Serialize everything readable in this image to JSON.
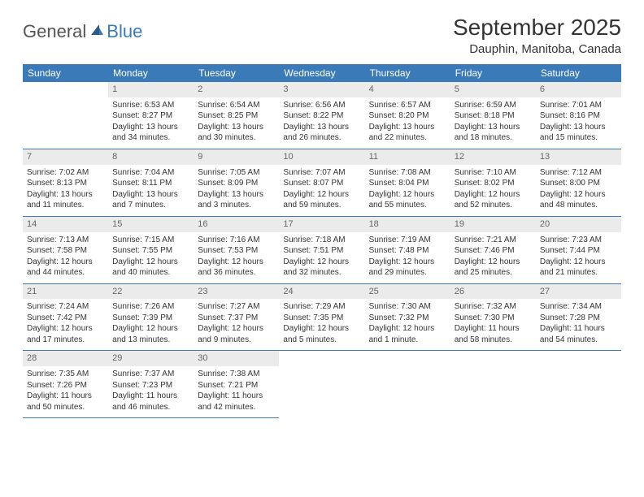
{
  "logo": {
    "text1": "General",
    "text2": "Blue"
  },
  "title": "September 2025",
  "location": "Dauphin, Manitoba, Canada",
  "weekdays": [
    "Sunday",
    "Monday",
    "Tuesday",
    "Wednesday",
    "Thursday",
    "Friday",
    "Saturday"
  ],
  "colors": {
    "header_bg": "#3a7ab8",
    "header_text": "#ffffff",
    "daynum_bg": "#ebebeb",
    "daynum_text": "#666666",
    "body_text": "#333333",
    "row_border": "#3a7ab8",
    "logo_gray": "#555555",
    "logo_blue": "#3a7ab8"
  },
  "weeks": [
    [
      {
        "n": "",
        "sr": "",
        "ss": "",
        "dl": ""
      },
      {
        "n": "1",
        "sr": "Sunrise: 6:53 AM",
        "ss": "Sunset: 8:27 PM",
        "dl": "Daylight: 13 hours and 34 minutes."
      },
      {
        "n": "2",
        "sr": "Sunrise: 6:54 AM",
        "ss": "Sunset: 8:25 PM",
        "dl": "Daylight: 13 hours and 30 minutes."
      },
      {
        "n": "3",
        "sr": "Sunrise: 6:56 AM",
        "ss": "Sunset: 8:22 PM",
        "dl": "Daylight: 13 hours and 26 minutes."
      },
      {
        "n": "4",
        "sr": "Sunrise: 6:57 AM",
        "ss": "Sunset: 8:20 PM",
        "dl": "Daylight: 13 hours and 22 minutes."
      },
      {
        "n": "5",
        "sr": "Sunrise: 6:59 AM",
        "ss": "Sunset: 8:18 PM",
        "dl": "Daylight: 13 hours and 18 minutes."
      },
      {
        "n": "6",
        "sr": "Sunrise: 7:01 AM",
        "ss": "Sunset: 8:16 PM",
        "dl": "Daylight: 13 hours and 15 minutes."
      }
    ],
    [
      {
        "n": "7",
        "sr": "Sunrise: 7:02 AM",
        "ss": "Sunset: 8:13 PM",
        "dl": "Daylight: 13 hours and 11 minutes."
      },
      {
        "n": "8",
        "sr": "Sunrise: 7:04 AM",
        "ss": "Sunset: 8:11 PM",
        "dl": "Daylight: 13 hours and 7 minutes."
      },
      {
        "n": "9",
        "sr": "Sunrise: 7:05 AM",
        "ss": "Sunset: 8:09 PM",
        "dl": "Daylight: 13 hours and 3 minutes."
      },
      {
        "n": "10",
        "sr": "Sunrise: 7:07 AM",
        "ss": "Sunset: 8:07 PM",
        "dl": "Daylight: 12 hours and 59 minutes."
      },
      {
        "n": "11",
        "sr": "Sunrise: 7:08 AM",
        "ss": "Sunset: 8:04 PM",
        "dl": "Daylight: 12 hours and 55 minutes."
      },
      {
        "n": "12",
        "sr": "Sunrise: 7:10 AM",
        "ss": "Sunset: 8:02 PM",
        "dl": "Daylight: 12 hours and 52 minutes."
      },
      {
        "n": "13",
        "sr": "Sunrise: 7:12 AM",
        "ss": "Sunset: 8:00 PM",
        "dl": "Daylight: 12 hours and 48 minutes."
      }
    ],
    [
      {
        "n": "14",
        "sr": "Sunrise: 7:13 AM",
        "ss": "Sunset: 7:58 PM",
        "dl": "Daylight: 12 hours and 44 minutes."
      },
      {
        "n": "15",
        "sr": "Sunrise: 7:15 AM",
        "ss": "Sunset: 7:55 PM",
        "dl": "Daylight: 12 hours and 40 minutes."
      },
      {
        "n": "16",
        "sr": "Sunrise: 7:16 AM",
        "ss": "Sunset: 7:53 PM",
        "dl": "Daylight: 12 hours and 36 minutes."
      },
      {
        "n": "17",
        "sr": "Sunrise: 7:18 AM",
        "ss": "Sunset: 7:51 PM",
        "dl": "Daylight: 12 hours and 32 minutes."
      },
      {
        "n": "18",
        "sr": "Sunrise: 7:19 AM",
        "ss": "Sunset: 7:48 PM",
        "dl": "Daylight: 12 hours and 29 minutes."
      },
      {
        "n": "19",
        "sr": "Sunrise: 7:21 AM",
        "ss": "Sunset: 7:46 PM",
        "dl": "Daylight: 12 hours and 25 minutes."
      },
      {
        "n": "20",
        "sr": "Sunrise: 7:23 AM",
        "ss": "Sunset: 7:44 PM",
        "dl": "Daylight: 12 hours and 21 minutes."
      }
    ],
    [
      {
        "n": "21",
        "sr": "Sunrise: 7:24 AM",
        "ss": "Sunset: 7:42 PM",
        "dl": "Daylight: 12 hours and 17 minutes."
      },
      {
        "n": "22",
        "sr": "Sunrise: 7:26 AM",
        "ss": "Sunset: 7:39 PM",
        "dl": "Daylight: 12 hours and 13 minutes."
      },
      {
        "n": "23",
        "sr": "Sunrise: 7:27 AM",
        "ss": "Sunset: 7:37 PM",
        "dl": "Daylight: 12 hours and 9 minutes."
      },
      {
        "n": "24",
        "sr": "Sunrise: 7:29 AM",
        "ss": "Sunset: 7:35 PM",
        "dl": "Daylight: 12 hours and 5 minutes."
      },
      {
        "n": "25",
        "sr": "Sunrise: 7:30 AM",
        "ss": "Sunset: 7:32 PM",
        "dl": "Daylight: 12 hours and 1 minute."
      },
      {
        "n": "26",
        "sr": "Sunrise: 7:32 AM",
        "ss": "Sunset: 7:30 PM",
        "dl": "Daylight: 11 hours and 58 minutes."
      },
      {
        "n": "27",
        "sr": "Sunrise: 7:34 AM",
        "ss": "Sunset: 7:28 PM",
        "dl": "Daylight: 11 hours and 54 minutes."
      }
    ],
    [
      {
        "n": "28",
        "sr": "Sunrise: 7:35 AM",
        "ss": "Sunset: 7:26 PM",
        "dl": "Daylight: 11 hours and 50 minutes."
      },
      {
        "n": "29",
        "sr": "Sunrise: 7:37 AM",
        "ss": "Sunset: 7:23 PM",
        "dl": "Daylight: 11 hours and 46 minutes."
      },
      {
        "n": "30",
        "sr": "Sunrise: 7:38 AM",
        "ss": "Sunset: 7:21 PM",
        "dl": "Daylight: 11 hours and 42 minutes."
      },
      {
        "n": "",
        "sr": "",
        "ss": "",
        "dl": ""
      },
      {
        "n": "",
        "sr": "",
        "ss": "",
        "dl": ""
      },
      {
        "n": "",
        "sr": "",
        "ss": "",
        "dl": ""
      },
      {
        "n": "",
        "sr": "",
        "ss": "",
        "dl": ""
      }
    ]
  ]
}
